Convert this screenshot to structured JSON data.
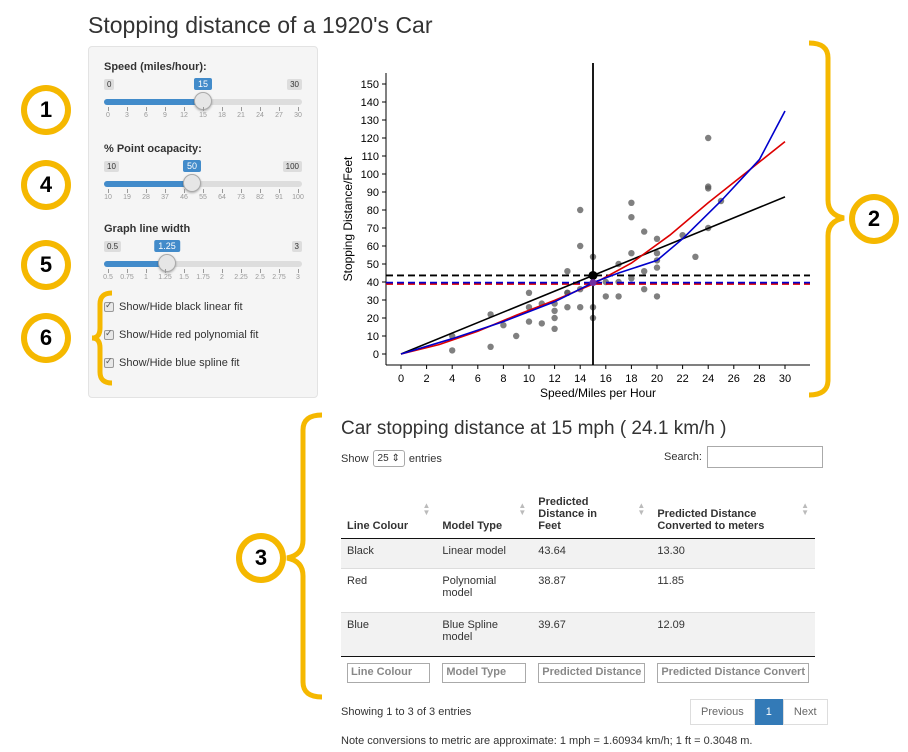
{
  "title": "Stopping distance of a 1920's Car",
  "sidebar": {
    "speed": {
      "label": "Speed (miles/hour):",
      "min": "0",
      "max": "30",
      "value": "15",
      "fraction": 0.5,
      "ticks": [
        "0",
        "3",
        "6",
        "9",
        "12",
        "15",
        "18",
        "21",
        "24",
        "27",
        "30"
      ]
    },
    "opacity": {
      "label": "% Point ocapacity:",
      "min": "10",
      "max": "100",
      "value": "50",
      "fraction": 0.444,
      "ticks": [
        "10",
        "19",
        "28",
        "37",
        "46",
        "55",
        "64",
        "73",
        "82",
        "91",
        "100"
      ]
    },
    "linewidth": {
      "label": "Graph line width",
      "min": "0.5",
      "max": "3",
      "value": "1.25",
      "fraction": 0.3,
      "ticks": [
        "0.5",
        "0.75",
        "1",
        "1.25",
        "1.5",
        "1.75",
        "2",
        "2.25",
        "2.5",
        "2.75",
        "3"
      ]
    },
    "checkboxes": [
      "Show/Hide black linear fit",
      "Show/Hide red polynomial fit",
      "Show/Hide blue spline fit"
    ]
  },
  "badges": [
    "1",
    "4",
    "5",
    "6",
    "2",
    "3"
  ],
  "chart_data": {
    "type": "scatter",
    "xlabel": "Speed/Miles per Hour",
    "ylabel": "Stopping Distance/Feet",
    "xlim": [
      0,
      30
    ],
    "ylim": [
      0,
      150
    ],
    "xticks": [
      0,
      2,
      4,
      6,
      8,
      10,
      12,
      14,
      16,
      18,
      20,
      22,
      24,
      26,
      28,
      30
    ],
    "yticks": [
      0,
      10,
      20,
      30,
      40,
      50,
      60,
      70,
      80,
      90,
      100,
      110,
      120,
      130,
      140,
      150
    ],
    "points": [
      [
        4,
        2
      ],
      [
        4,
        10
      ],
      [
        7,
        4
      ],
      [
        7,
        22
      ],
      [
        8,
        16
      ],
      [
        9,
        10
      ],
      [
        10,
        18
      ],
      [
        10,
        26
      ],
      [
        10,
        34
      ],
      [
        11,
        17
      ],
      [
        11,
        28
      ],
      [
        12,
        14
      ],
      [
        12,
        20
      ],
      [
        12,
        24
      ],
      [
        12,
        28
      ],
      [
        13,
        26
      ],
      [
        13,
        34
      ],
      [
        13,
        34
      ],
      [
        13,
        46
      ],
      [
        14,
        26
      ],
      [
        14,
        36
      ],
      [
        14,
        60
      ],
      [
        14,
        80
      ],
      [
        15,
        20
      ],
      [
        15,
        26
      ],
      [
        15,
        54
      ],
      [
        16,
        32
      ],
      [
        16,
        40
      ],
      [
        17,
        32
      ],
      [
        17,
        40
      ],
      [
        17,
        50
      ],
      [
        18,
        42
      ],
      [
        18,
        56
      ],
      [
        18,
        76
      ],
      [
        18,
        84
      ],
      [
        19,
        36
      ],
      [
        19,
        46
      ],
      [
        19,
        68
      ],
      [
        20,
        32
      ],
      [
        20,
        48
      ],
      [
        20,
        52
      ],
      [
        20,
        56
      ],
      [
        20,
        64
      ],
      [
        22,
        66
      ],
      [
        23,
        54
      ],
      [
        24,
        70
      ],
      [
        24,
        92
      ],
      [
        24,
        93
      ],
      [
        24,
        120
      ],
      [
        25,
        85
      ]
    ],
    "vline_x": 15,
    "hlines": [
      {
        "y": 43.64,
        "color": "#000000"
      },
      {
        "y": 38.87,
        "color": "#dd0000"
      },
      {
        "y": 39.67,
        "color": "#0000cc"
      }
    ],
    "linear_fit": {
      "color": "#000000",
      "points": [
        [
          0,
          0
        ],
        [
          30,
          87.3
        ]
      ]
    },
    "poly_fit": {
      "color": "#dd0000",
      "points": [
        [
          0,
          0
        ],
        [
          3,
          5.3
        ],
        [
          6,
          12.6
        ],
        [
          9,
          21.5
        ],
        [
          12,
          29.8
        ],
        [
          15,
          38.87
        ],
        [
          18,
          50.5
        ],
        [
          21,
          66
        ],
        [
          24,
          84
        ],
        [
          27,
          101
        ],
        [
          30,
          118
        ]
      ]
    },
    "spline_fit": {
      "color": "#0000cc",
      "points": [
        [
          0,
          0
        ],
        [
          4,
          8.5
        ],
        [
          8,
          18
        ],
        [
          12,
          29
        ],
        [
          15,
          39.67
        ],
        [
          17,
          45
        ],
        [
          20,
          52
        ],
        [
          22,
          64
        ],
        [
          25,
          85
        ],
        [
          28,
          108
        ],
        [
          30,
          135
        ]
      ]
    },
    "marker": {
      "x": 15,
      "y": 43.64
    }
  },
  "table": {
    "heading": "Car stopping distance at 15 mph ( 24.1 km/h )",
    "show_label": "Show",
    "entries_value": "25",
    "entries_label": "entries",
    "search_label": "Search:",
    "columns": [
      "Line Colour",
      "Model Type",
      "Predicted Distance in Feet",
      "Predicted Distance Converted to meters"
    ],
    "rows": [
      [
        "Black",
        "Linear model",
        "43.64",
        "13.30"
      ],
      [
        "Red",
        "Polynomial model",
        "38.87",
        "11.85"
      ],
      [
        "Blue",
        "Blue Spline model",
        "39.67",
        "12.09"
      ]
    ],
    "footer_filters": [
      "Line Colour",
      "Model Type",
      "Predicted Distance",
      "Predicted Distance Convert"
    ],
    "info": "Showing 1 to 3 of 3 entries",
    "pager": {
      "previous": "Previous",
      "page": "1",
      "next": "Next"
    }
  },
  "note": "Note conversions to metric are approximate: 1 mph = 1.60934 km/h; 1 ft = 0.3048 m."
}
